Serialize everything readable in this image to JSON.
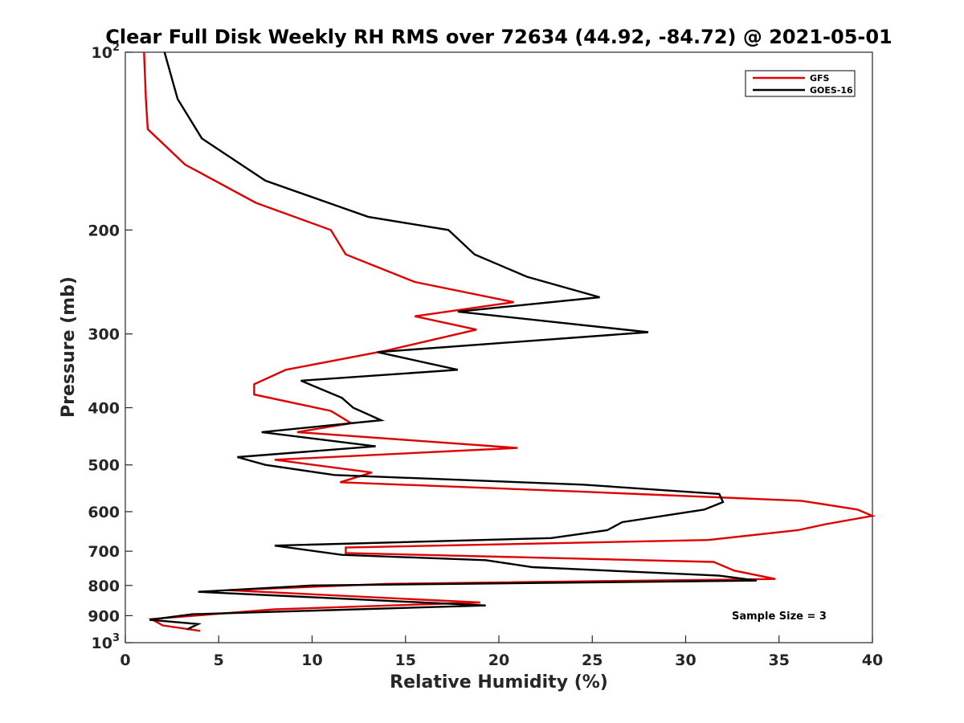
{
  "chart_data": {
    "type": "line",
    "title": "Clear Full Disk Weekly RH RMS over 72634 (44.92, -84.72) @ 2021-05-01",
    "xlabel": "Relative Humidity (%)",
    "ylabel": "Pressure (mb)",
    "xlim": [
      0,
      40
    ],
    "ylim": [
      100,
      1000
    ],
    "yscale": "log",
    "y_reversed": true,
    "x_ticks": [
      0,
      5,
      10,
      15,
      20,
      25,
      30,
      35,
      40
    ],
    "x_tick_labels": [
      "0",
      "5",
      "10",
      "15",
      "20",
      "25",
      "30",
      "35",
      "40"
    ],
    "y_ticks": [
      100,
      200,
      300,
      400,
      500,
      600,
      700,
      800,
      900,
      1000
    ],
    "y_tick_labels": [
      {
        "base": "10",
        "exp": "2"
      },
      {
        "base": "200",
        "exp": ""
      },
      {
        "base": "300",
        "exp": ""
      },
      {
        "base": "400",
        "exp": ""
      },
      {
        "base": "500",
        "exp": ""
      },
      {
        "base": "600",
        "exp": ""
      },
      {
        "base": "700",
        "exp": ""
      },
      {
        "base": "800",
        "exp": ""
      },
      {
        "base": "900",
        "exp": ""
      },
      {
        "base": "10",
        "exp": "3"
      }
    ],
    "grid": false,
    "legend_position": "top-right",
    "annotation": "Sample Size = 3",
    "series": [
      {
        "name": "GFS",
        "color": "#e00000",
        "points": [
          [
            1.0,
            100
          ],
          [
            1.1,
            120
          ],
          [
            1.2,
            135
          ],
          [
            3.2,
            155
          ],
          [
            7.0,
            180
          ],
          [
            11.0,
            200
          ],
          [
            11.8,
            220
          ],
          [
            15.5,
            245
          ],
          [
            20.8,
            265
          ],
          [
            15.5,
            280
          ],
          [
            18.8,
            295
          ],
          [
            14.0,
            320
          ],
          [
            8.6,
            345
          ],
          [
            6.9,
            365
          ],
          [
            6.9,
            380
          ],
          [
            11.0,
            405
          ],
          [
            12.1,
            425
          ],
          [
            9.2,
            440
          ],
          [
            21.0,
            468
          ],
          [
            8.0,
            490
          ],
          [
            13.2,
            515
          ],
          [
            11.5,
            535
          ],
          [
            24.5,
            555
          ],
          [
            36.2,
            575
          ],
          [
            39.2,
            595
          ],
          [
            40.0,
            610
          ],
          [
            37.5,
            630
          ],
          [
            36.0,
            645
          ],
          [
            31.2,
            670
          ],
          [
            11.8,
            690
          ],
          [
            11.8,
            705
          ],
          [
            31.5,
            730
          ],
          [
            32.6,
            755
          ],
          [
            34.8,
            780
          ],
          [
            14.0,
            795
          ],
          [
            5.5,
            815
          ],
          [
            19.0,
            855
          ],
          [
            8.0,
            878
          ],
          [
            1.4,
            912
          ],
          [
            2.0,
            935
          ],
          [
            4.0,
            955
          ]
        ]
      },
      {
        "name": "GOES-16",
        "color": "#000000",
        "points": [
          [
            2.1,
            100
          ],
          [
            2.8,
            120
          ],
          [
            4.1,
            140
          ],
          [
            7.5,
            165
          ],
          [
            13.0,
            190
          ],
          [
            17.3,
            200
          ],
          [
            18.7,
            220
          ],
          [
            21.5,
            240
          ],
          [
            25.4,
            260
          ],
          [
            17.8,
            275
          ],
          [
            28.0,
            298
          ],
          [
            13.5,
            322
          ],
          [
            17.8,
            345
          ],
          [
            9.4,
            360
          ],
          [
            11.6,
            385
          ],
          [
            12.2,
            400
          ],
          [
            13.7,
            420
          ],
          [
            7.3,
            440
          ],
          [
            13.4,
            465
          ],
          [
            6.0,
            485
          ],
          [
            7.5,
            500
          ],
          [
            11.2,
            520
          ],
          [
            24.5,
            540
          ],
          [
            31.8,
            560
          ],
          [
            32.0,
            578
          ],
          [
            31.0,
            595
          ],
          [
            26.6,
            625
          ],
          [
            25.8,
            645
          ],
          [
            22.8,
            665
          ],
          [
            8.0,
            685
          ],
          [
            11.6,
            710
          ],
          [
            19.3,
            725
          ],
          [
            21.8,
            745
          ],
          [
            31.8,
            770
          ],
          [
            33.8,
            785
          ],
          [
            10.0,
            800
          ],
          [
            3.9,
            820
          ],
          [
            19.3,
            865
          ],
          [
            3.6,
            895
          ],
          [
            1.3,
            915
          ],
          [
            3.9,
            930
          ],
          [
            3.3,
            950
          ]
        ]
      }
    ]
  }
}
